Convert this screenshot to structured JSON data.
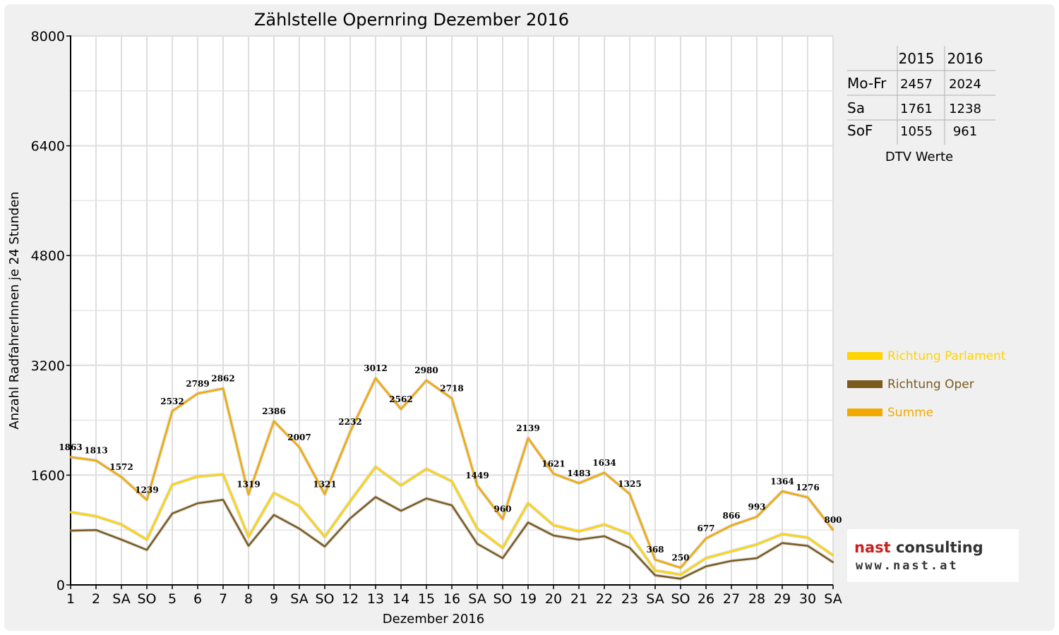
{
  "chart_data": {
    "type": "line",
    "title": "Zählstelle Opernring Dezember 2016",
    "xlabel": "Dezember 2016",
    "ylabel": "Anzahl RadfahrerInnen je 24 Stunden",
    "ylim": [
      0,
      8000
    ],
    "yticks": [
      "0",
      "1600",
      "3200",
      "4800",
      "6400",
      "8000"
    ],
    "grid": true,
    "legend_position": "right",
    "categories": [
      "1",
      "2",
      "SA",
      "SO",
      "5",
      "6",
      "7",
      "8",
      "9",
      "SA",
      "SO",
      "12",
      "13",
      "14",
      "15",
      "16",
      "SA",
      "SO",
      "19",
      "20",
      "21",
      "22",
      "23",
      "SA",
      "SO",
      "26",
      "27",
      "28",
      "29",
      "30",
      "SA"
    ],
    "holiday_categories": [
      "SO",
      "8",
      "26"
    ],
    "series": [
      {
        "name": "Richtung Parlament",
        "color": "#ffd400",
        "values": [
          1060,
          1000,
          880,
          660,
          1460,
          1580,
          1610,
          700,
          1340,
          1150,
          700,
          1220,
          1720,
          1450,
          1690,
          1510,
          820,
          540,
          1190,
          870,
          780,
          880,
          740,
          210,
          150,
          390,
          490,
          590,
          740,
          690,
          430
        ]
      },
      {
        "name": "Richtung Oper",
        "color": "#7a5a1e",
        "values": [
          790,
          800,
          660,
          510,
          1040,
          1190,
          1240,
          570,
          1020,
          820,
          560,
          970,
          1280,
          1080,
          1260,
          1160,
          600,
          390,
          910,
          720,
          660,
          710,
          540,
          140,
          90,
          270,
          350,
          390,
          610,
          570,
          330
        ]
      },
      {
        "name": "Summe",
        "color": "#f2a900",
        "values": [
          1863,
          1813,
          1572,
          1239,
          2532,
          2789,
          2862,
          1319,
          2386,
          2007,
          1321,
          2232,
          3012,
          2562,
          2980,
          2718,
          1449,
          960,
          2139,
          1621,
          1483,
          1634,
          1325,
          368,
          250,
          677,
          866,
          993,
          1364,
          1276,
          800
        ]
      }
    ],
    "data_labels": [
      "1863",
      "1813",
      "1572",
      "1239",
      "2532",
      "2789",
      "2862",
      "1319",
      "2386",
      "2007",
      "1321",
      "2232",
      "3012",
      "2562",
      "2980",
      "2718",
      "1449",
      "960",
      "2139",
      "1621",
      "1483",
      "1634",
      "1325",
      "368",
      "250",
      "677",
      "866",
      "993",
      "1364",
      "1276",
      "800"
    ]
  },
  "dtv_table": {
    "caption": "DTV Werte",
    "columns": [
      "2015",
      "2016"
    ],
    "rows": [
      {
        "label": "Mo-Fr",
        "v2015": "2457",
        "v2016": "2024"
      },
      {
        "label": "Sa",
        "v2015": "1761",
        "v2016": "1238"
      },
      {
        "label": "SoF",
        "v2015": "1055",
        "v2016": "961"
      }
    ]
  },
  "logo": {
    "name_part1": "nast",
    "name_part2": " consulting",
    "url": "www.nast.at",
    "accent_color": "#cc1f1f"
  }
}
